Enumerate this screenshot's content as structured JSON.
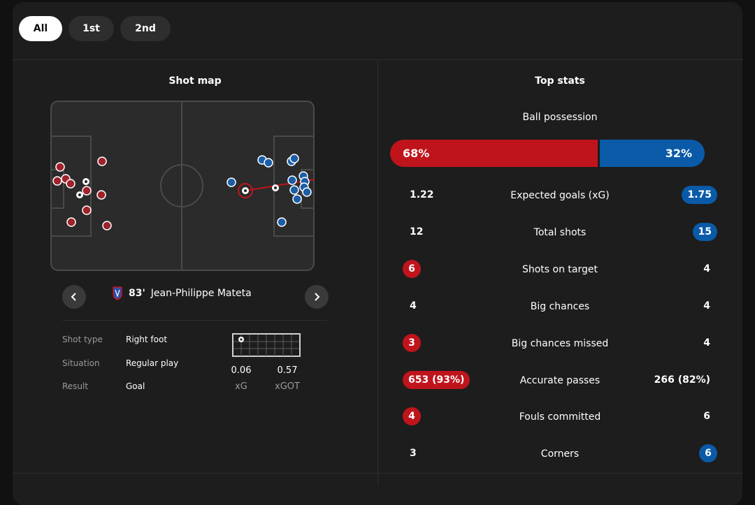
{
  "filters": [
    {
      "label": "All",
      "active": true
    },
    {
      "label": "1st",
      "active": false
    },
    {
      "label": "2nd",
      "active": false
    }
  ],
  "shot_map": {
    "title": "Shot map",
    "home_color": "#a0222a",
    "away_color": "#1b5ea8",
    "selected_shot": {
      "minute_label": "83'",
      "player": "Jean-Philippe Mateta",
      "details": [
        {
          "label": "Shot type",
          "value": "Right foot"
        },
        {
          "label": "Situation",
          "value": "Regular play"
        },
        {
          "label": "Result",
          "value": "Goal"
        }
      ],
      "xg": "0.06",
      "xg_label": "xG",
      "xgot": "0.57",
      "xgot_label": "xGOT"
    }
  },
  "top_stats": {
    "title": "Top stats",
    "possession": {
      "label": "Ball possession",
      "home": "68%",
      "away": "32%",
      "home_pct": 68
    },
    "rows": [
      {
        "name": "Expected goals (xG)",
        "home": "1.22",
        "away": "1.75",
        "highlight": "away"
      },
      {
        "name": "Total shots",
        "home": "12",
        "away": "15",
        "highlight": "away"
      },
      {
        "name": "Shots on target",
        "home": "6",
        "away": "4",
        "highlight": "home"
      },
      {
        "name": "Big chances",
        "home": "4",
        "away": "4",
        "highlight": "none"
      },
      {
        "name": "Big chances missed",
        "home": "3",
        "away": "4",
        "highlight": "home"
      },
      {
        "name": "Accurate passes",
        "home": "653 (93%)",
        "away": "266 (82%)",
        "highlight": "home"
      },
      {
        "name": "Fouls committed",
        "home": "4",
        "away": "6",
        "highlight": "home"
      },
      {
        "name": "Corners",
        "home": "3",
        "away": "6",
        "highlight": "away"
      }
    ]
  },
  "colors": {
    "home": "#c0141c",
    "away": "#0a5aa8",
    "background": "#1d1d1d"
  }
}
